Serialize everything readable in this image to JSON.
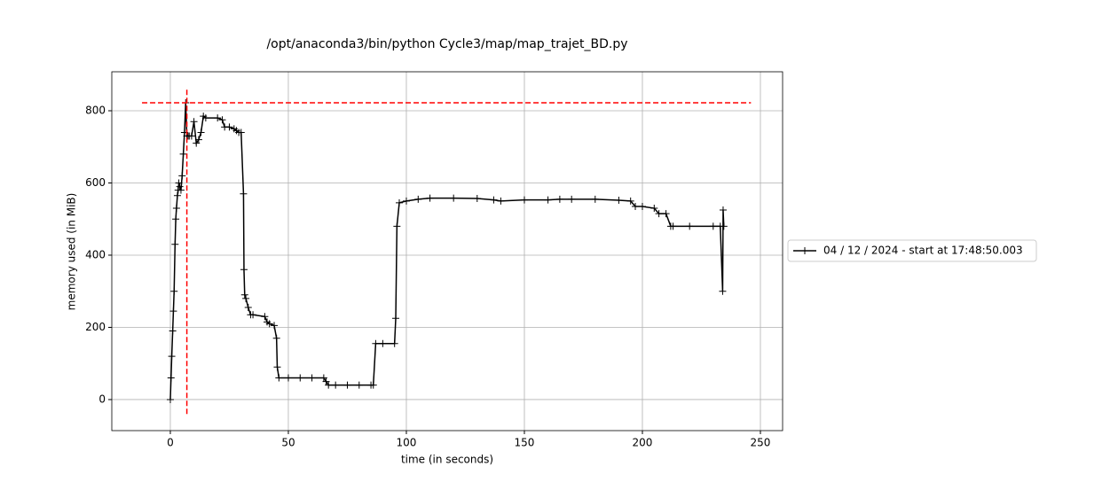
{
  "chart_data": {
    "type": "line",
    "title": "/opt/anaconda3/bin/python Cycle3/map/map_trajet_BD.py",
    "x_label": "time (in seconds)",
    "y_label": "memory used (in MiB)",
    "x": [
      0,
      0.3,
      0.6,
      1,
      1.3,
      1.6,
      2,
      2.3,
      2.6,
      3,
      3.3,
      3.6,
      4,
      4.5,
      5,
      5.5,
      6,
      6.5,
      7,
      7.5,
      8,
      9,
      10,
      11,
      12,
      13,
      14,
      15,
      20,
      22,
      23,
      25,
      27,
      28,
      29,
      30,
      31,
      31.2,
      31.5,
      32,
      33,
      34,
      35,
      40,
      41,
      42,
      44,
      45,
      45.3,
      46,
      50,
      55,
      60,
      65,
      66,
      67,
      70,
      75,
      80,
      85,
      86,
      87,
      90,
      95,
      95.5,
      96,
      97,
      100,
      105,
      110,
      120,
      130,
      137,
      140,
      150,
      160,
      165,
      170,
      180,
      190,
      195,
      197,
      200,
      205,
      207,
      210,
      212,
      213,
      220,
      230,
      233,
      234,
      234.2,
      234.5
    ],
    "series": [
      {
        "name": "04 / 12 / 2024 - start at 17:48:50.003",
        "color": "#000000",
        "values": [
          0,
          60,
          120,
          190,
          245,
          300,
          430,
          500,
          530,
          565,
          580,
          600,
          590,
          580,
          620,
          680,
          740,
          822,
          730,
          730,
          730,
          730,
          770,
          710,
          720,
          740,
          785,
          780,
          780,
          775,
          755,
          755,
          750,
          745,
          740,
          740,
          570,
          360,
          290,
          280,
          255,
          235,
          235,
          230,
          215,
          210,
          205,
          170,
          90,
          60,
          60,
          60,
          60,
          60,
          50,
          40,
          40,
          40,
          40,
          40,
          40,
          155,
          155,
          155,
          225,
          480,
          545,
          550,
          555,
          558,
          558,
          557,
          553,
          550,
          553,
          553,
          555,
          555,
          555,
          552,
          550,
          535,
          535,
          530,
          515,
          515,
          480,
          480,
          480,
          480,
          480,
          300,
          525,
          480
        ]
      }
    ],
    "hlines": [
      {
        "y": 822,
        "xmin": -12,
        "xmax": 246,
        "color": "#ff0000"
      }
    ],
    "vlines": [
      {
        "x": 7,
        "ymin": -40,
        "ymax": 862,
        "color": "#ff0000"
      }
    ],
    "xlim": [
      -24.8,
      259.4
    ],
    "ylim": [
      -86,
      908
    ],
    "xticks": [
      0,
      50,
      100,
      150,
      200,
      250
    ],
    "yticks": [
      0,
      200,
      400,
      600,
      800
    ],
    "grid": true,
    "legend": "outside-right"
  }
}
